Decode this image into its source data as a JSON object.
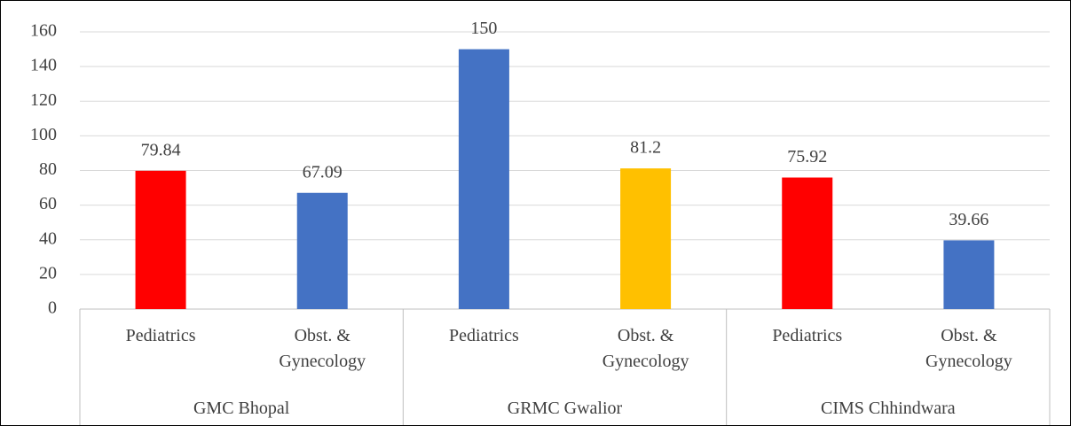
{
  "chart_data": {
    "type": "bar",
    "categories": [
      "Pediatrics",
      "Obst. & Gynecology",
      "Pediatrics",
      "Obst. & Gynecology",
      "Pediatrics",
      "Obst. & Gynecology"
    ],
    "groups": [
      "GMC Bhopal",
      "GRMC Gwalior",
      "CIMS Chhindwara"
    ],
    "values": [
      79.84,
      67.09,
      150,
      81.2,
      75.92,
      39.66
    ],
    "colors": [
      "#ff0000",
      "#4472c4",
      "#4472c4",
      "#ffc000",
      "#ff0000",
      "#4472c4"
    ],
    "ylim": [
      0,
      160
    ],
    "yticks": [
      0,
      20,
      40,
      60,
      80,
      100,
      120,
      140,
      160
    ],
    "grid": true
  }
}
